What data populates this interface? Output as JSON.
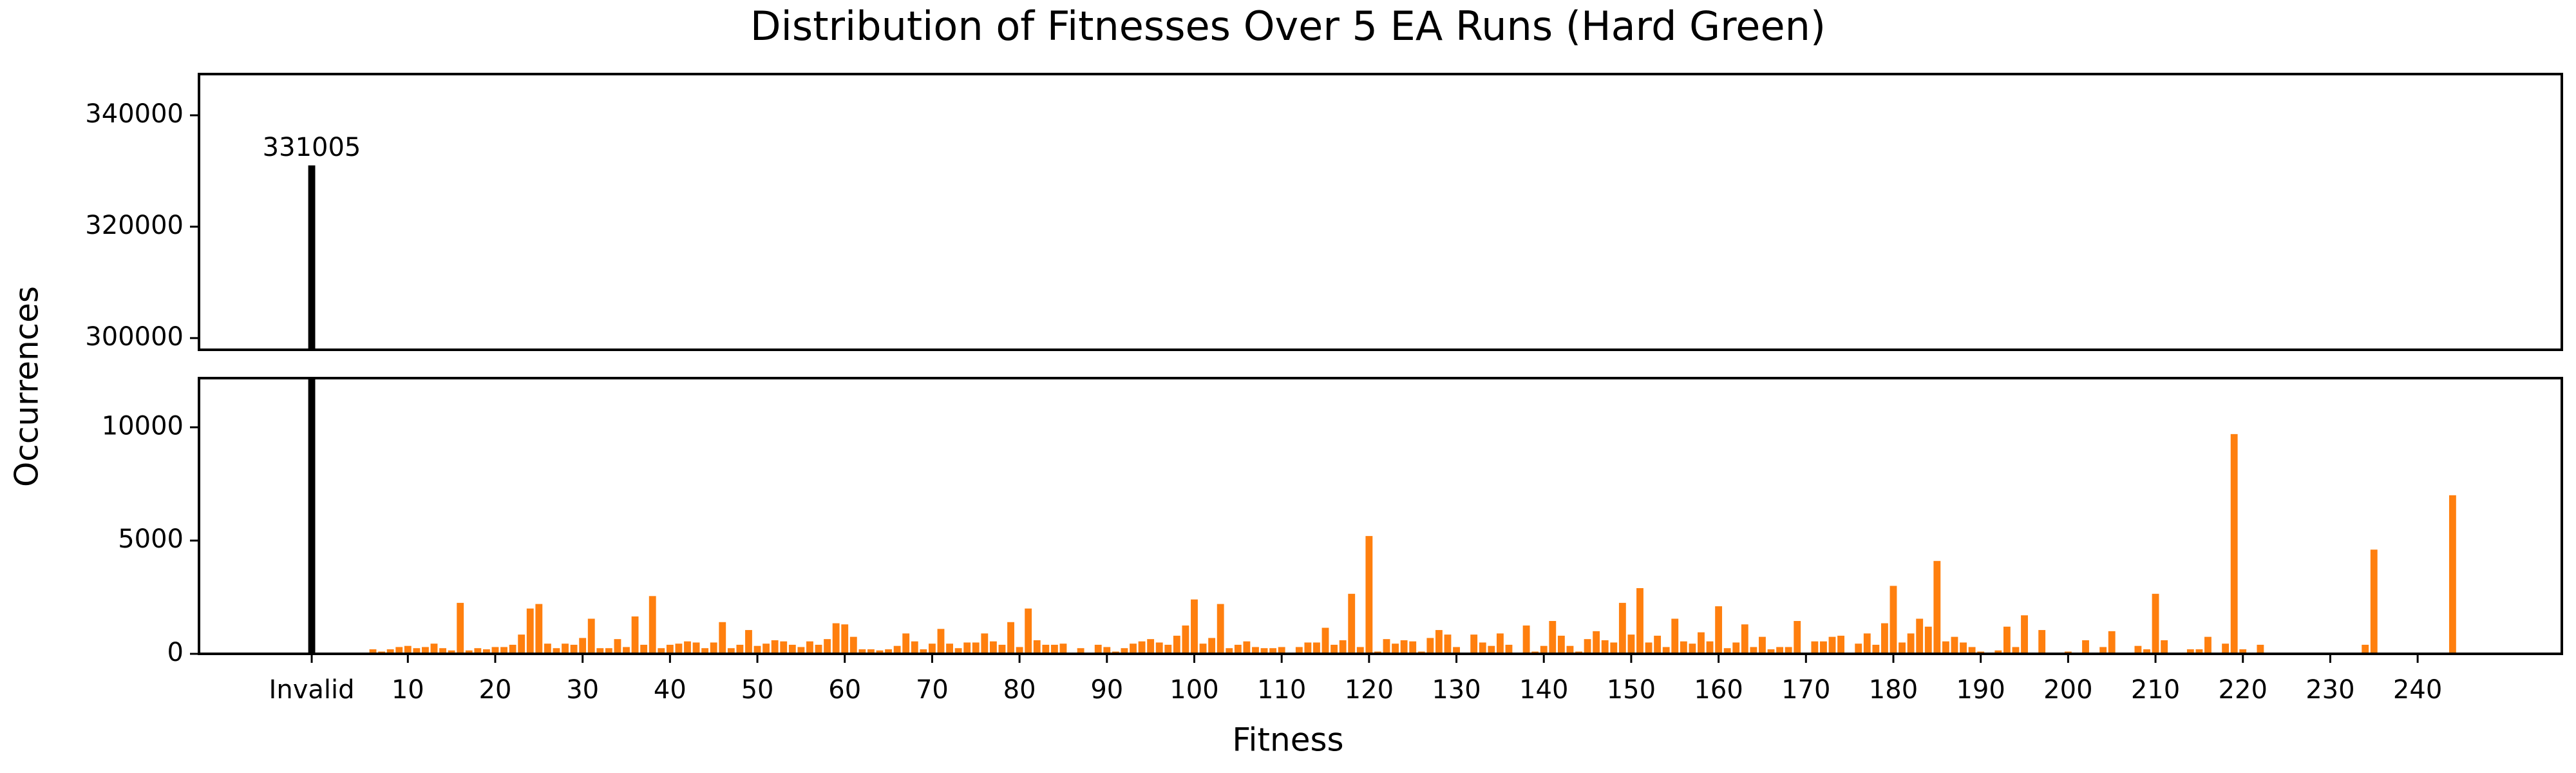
{
  "chart_data": {
    "type": "bar",
    "title": "Distribution of Fitnesses Over 5 EA Runs (Hard Green)",
    "xlabel": "Fitness",
    "ylabel": "Occurrences",
    "xlim": [
      -13.9,
      256.5
    ],
    "xticks": [
      {
        "value": -1,
        "label": "Invalid"
      },
      10,
      20,
      30,
      40,
      50,
      60,
      70,
      80,
      90,
      100,
      110,
      120,
      130,
      140,
      150,
      160,
      170,
      180,
      190,
      200,
      210,
      220,
      230,
      240
    ],
    "ylim_top": [
      297900,
      347400
    ],
    "yticks_top": [
      300000,
      320000,
      340000
    ],
    "ylim": [
      0,
      12170
    ],
    "yticks": [
      0,
      5000,
      10000
    ],
    "bar_width": 0.8,
    "series": [
      {
        "color": "#000000",
        "x": [
          -1
        ],
        "values": [
          331005
        ],
        "value_labels": [
          "331005"
        ]
      },
      {
        "color": "#ff7f0e",
        "x": [
          6,
          7,
          8,
          9,
          10,
          11,
          12,
          13,
          14,
          15,
          16,
          17,
          18,
          19,
          20,
          21,
          22,
          23,
          24,
          25,
          26,
          27,
          28,
          29,
          30,
          31,
          32,
          33,
          34,
          35,
          36,
          37,
          38,
          39,
          40,
          41,
          42,
          43,
          44,
          45,
          46,
          47,
          48,
          49,
          50,
          51,
          52,
          53,
          54,
          55,
          56,
          57,
          58,
          59,
          60,
          61,
          62,
          63,
          64,
          65,
          66,
          67,
          68,
          69,
          70,
          71,
          72,
          73,
          74,
          75,
          76,
          77,
          78,
          79,
          80,
          81,
          82,
          83,
          84,
          85,
          87,
          89,
          90,
          91,
          92,
          93,
          94,
          95,
          96,
          97,
          98,
          99,
          100,
          101,
          102,
          103,
          104,
          105,
          106,
          107,
          108,
          109,
          110,
          112,
          113,
          114,
          115,
          116,
          117,
          118,
          119,
          120,
          121,
          122,
          123,
          124,
          125,
          126,
          127,
          128,
          129,
          130,
          132,
          133,
          134,
          135,
          136,
          138,
          139,
          140,
          141,
          142,
          143,
          144,
          145,
          146,
          147,
          148,
          149,
          150,
          151,
          152,
          153,
          154,
          155,
          156,
          157,
          158,
          159,
          160,
          161,
          162,
          163,
          164,
          165,
          166,
          167,
          168,
          169,
          171,
          172,
          173,
          174,
          176,
          177,
          178,
          179,
          180,
          181,
          182,
          183,
          184,
          185,
          186,
          187,
          188,
          189,
          190,
          192,
          193,
          194,
          195,
          197,
          200,
          202,
          204,
          205,
          208,
          209,
          210,
          211,
          214,
          215,
          216,
          218,
          219,
          220,
          222,
          234,
          235,
          244
        ],
        "values": [
          200,
          100,
          200,
          300,
          350,
          250,
          300,
          450,
          250,
          150,
          2250,
          150,
          250,
          200,
          300,
          300,
          400,
          850,
          2000,
          2200,
          450,
          250,
          450,
          400,
          700,
          1550,
          250,
          250,
          650,
          300,
          1650,
          400,
          2550,
          250,
          400,
          450,
          550,
          500,
          250,
          500,
          1400,
          250,
          400,
          1050,
          350,
          450,
          600,
          550,
          400,
          300,
          550,
          400,
          650,
          1350,
          1300,
          750,
          200,
          200,
          150,
          200,
          350,
          900,
          550,
          200,
          450,
          1100,
          450,
          250,
          500,
          500,
          900,
          550,
          400,
          1400,
          300,
          2000,
          600,
          400,
          400,
          450,
          250,
          400,
          300,
          100,
          250,
          450,
          550,
          650,
          500,
          400,
          800,
          1250,
          2400,
          450,
          700,
          2200,
          250,
          400,
          550,
          300,
          250,
          250,
          300,
          300,
          500,
          500,
          1150,
          400,
          600,
          2650,
          300,
          5200,
          100,
          650,
          450,
          600,
          550,
          100,
          700,
          1050,
          850,
          300,
          850,
          500,
          350,
          900,
          400,
          1250,
          100,
          350,
          1450,
          800,
          350,
          100,
          650,
          1000,
          600,
          500,
          2250,
          850,
          2900,
          500,
          800,
          300,
          1550,
          550,
          450,
          950,
          550,
          2100,
          250,
          500,
          1300,
          300,
          750,
          200,
          300,
          300,
          1450,
          550,
          550,
          750,
          800,
          450,
          900,
          400,
          1350,
          3000,
          500,
          900,
          1550,
          1200,
          4100,
          550,
          750,
          500,
          300,
          100,
          150,
          1200,
          300,
          1700,
          1050,
          100,
          600,
          300,
          1000,
          350,
          200,
          2650,
          600,
          200,
          200,
          750,
          450,
          9700,
          200,
          400,
          400,
          4600,
          7000
        ]
      }
    ]
  }
}
